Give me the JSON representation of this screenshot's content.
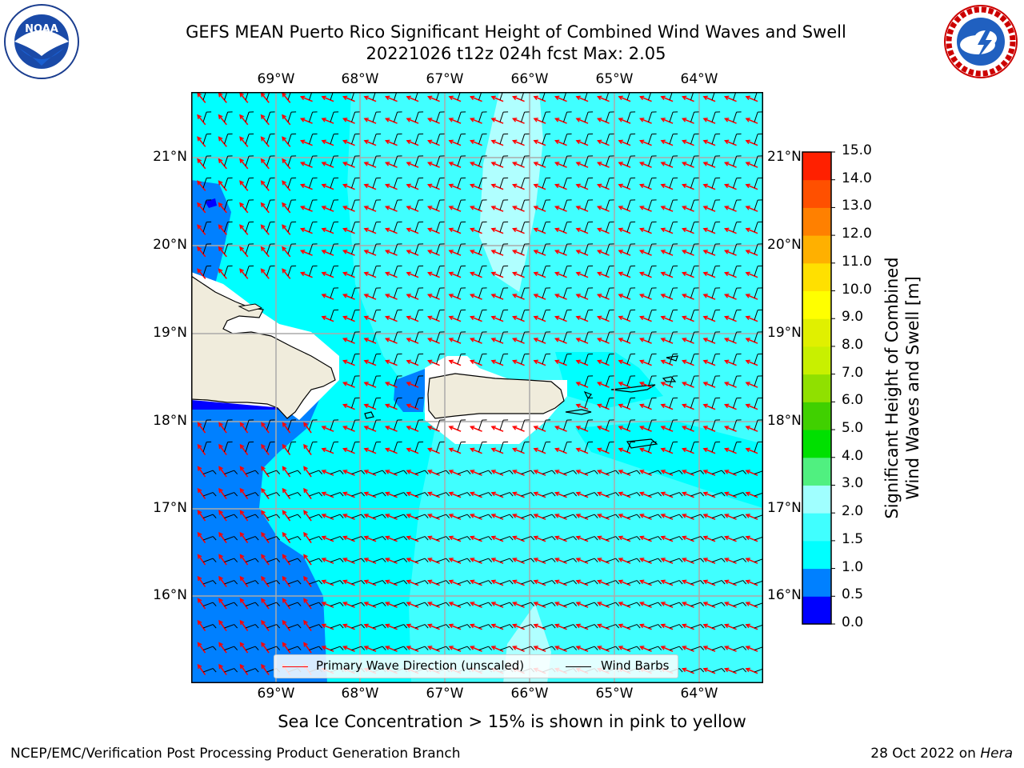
{
  "header": {
    "title_line1": "GEFS MEAN Puerto Rico Significant Height of Combined Wind Waves and Swell",
    "title_line2": "20221026 t12z 024h fcst   Max: 2.05"
  },
  "logos": {
    "noaa": {
      "text": "NOAA",
      "ring_text": "NATIONAL OCEANIC AND ATMOSPHERIC ADMINISTRATION · U.S. DEPARTMENT OF COMMERCE"
    },
    "nws": {
      "ring_text": "NATIONAL WEATHER SERVICE"
    }
  },
  "map": {
    "lon_labels": [
      "69°W",
      "68°W",
      "67°W",
      "66°W",
      "65°W",
      "64°W"
    ],
    "lat_labels_left": [
      "21°N",
      "20°N",
      "19°N",
      "18°N",
      "17°N",
      "16°N"
    ],
    "lat_labels_right": [
      "21°N",
      "20°N",
      "19°N",
      "18°N",
      "17°N",
      "16°N"
    ],
    "colors": {
      "land": "#f0ecdc",
      "sea_0_5_1_0": "#0080ff",
      "sea_1_0_1_5": "#00ffff",
      "sea_1_5_2_0": "#40ffff",
      "sea_2_0_3_0": "#b0ffff",
      "wave_arrow": "#ff0000",
      "wind_barb": "#000000"
    }
  },
  "legend": {
    "primary_wave": "Primary Wave Direction (unscaled)",
    "wind_barbs": "Wind Barbs"
  },
  "colorbar": {
    "ticks": [
      "15.0",
      "14.0",
      "13.0",
      "12.0",
      "11.0",
      "10.0",
      "9.0",
      "8.0",
      "7.0",
      "6.0",
      "5.0",
      "4.0",
      "3.0",
      "2.0",
      "1.5",
      "1.0",
      "0.5",
      "0.0"
    ],
    "colors_bottom_to_top": [
      "#0000ff",
      "#0080ff",
      "#00ffff",
      "#40ffff",
      "#a0ffff",
      "#50f080",
      "#00e000",
      "#40d000",
      "#90e000",
      "#c8f000",
      "#e0f000",
      "#ffff00",
      "#ffe000",
      "#ffb000",
      "#ff8000",
      "#ff5000",
      "#ff2000"
    ],
    "label_line1": "Significant Height of Combined",
    "label_line2": "Wind Waves and Swell [m]"
  },
  "note": "Sea Ice Concentration > 15% is shown in pink to yellow",
  "footer": {
    "left": "NCEP/EMC/Verification Post Processing Product Generation Branch",
    "right_date": "28 Oct 2022 on",
    "right_host": "Hera"
  }
}
